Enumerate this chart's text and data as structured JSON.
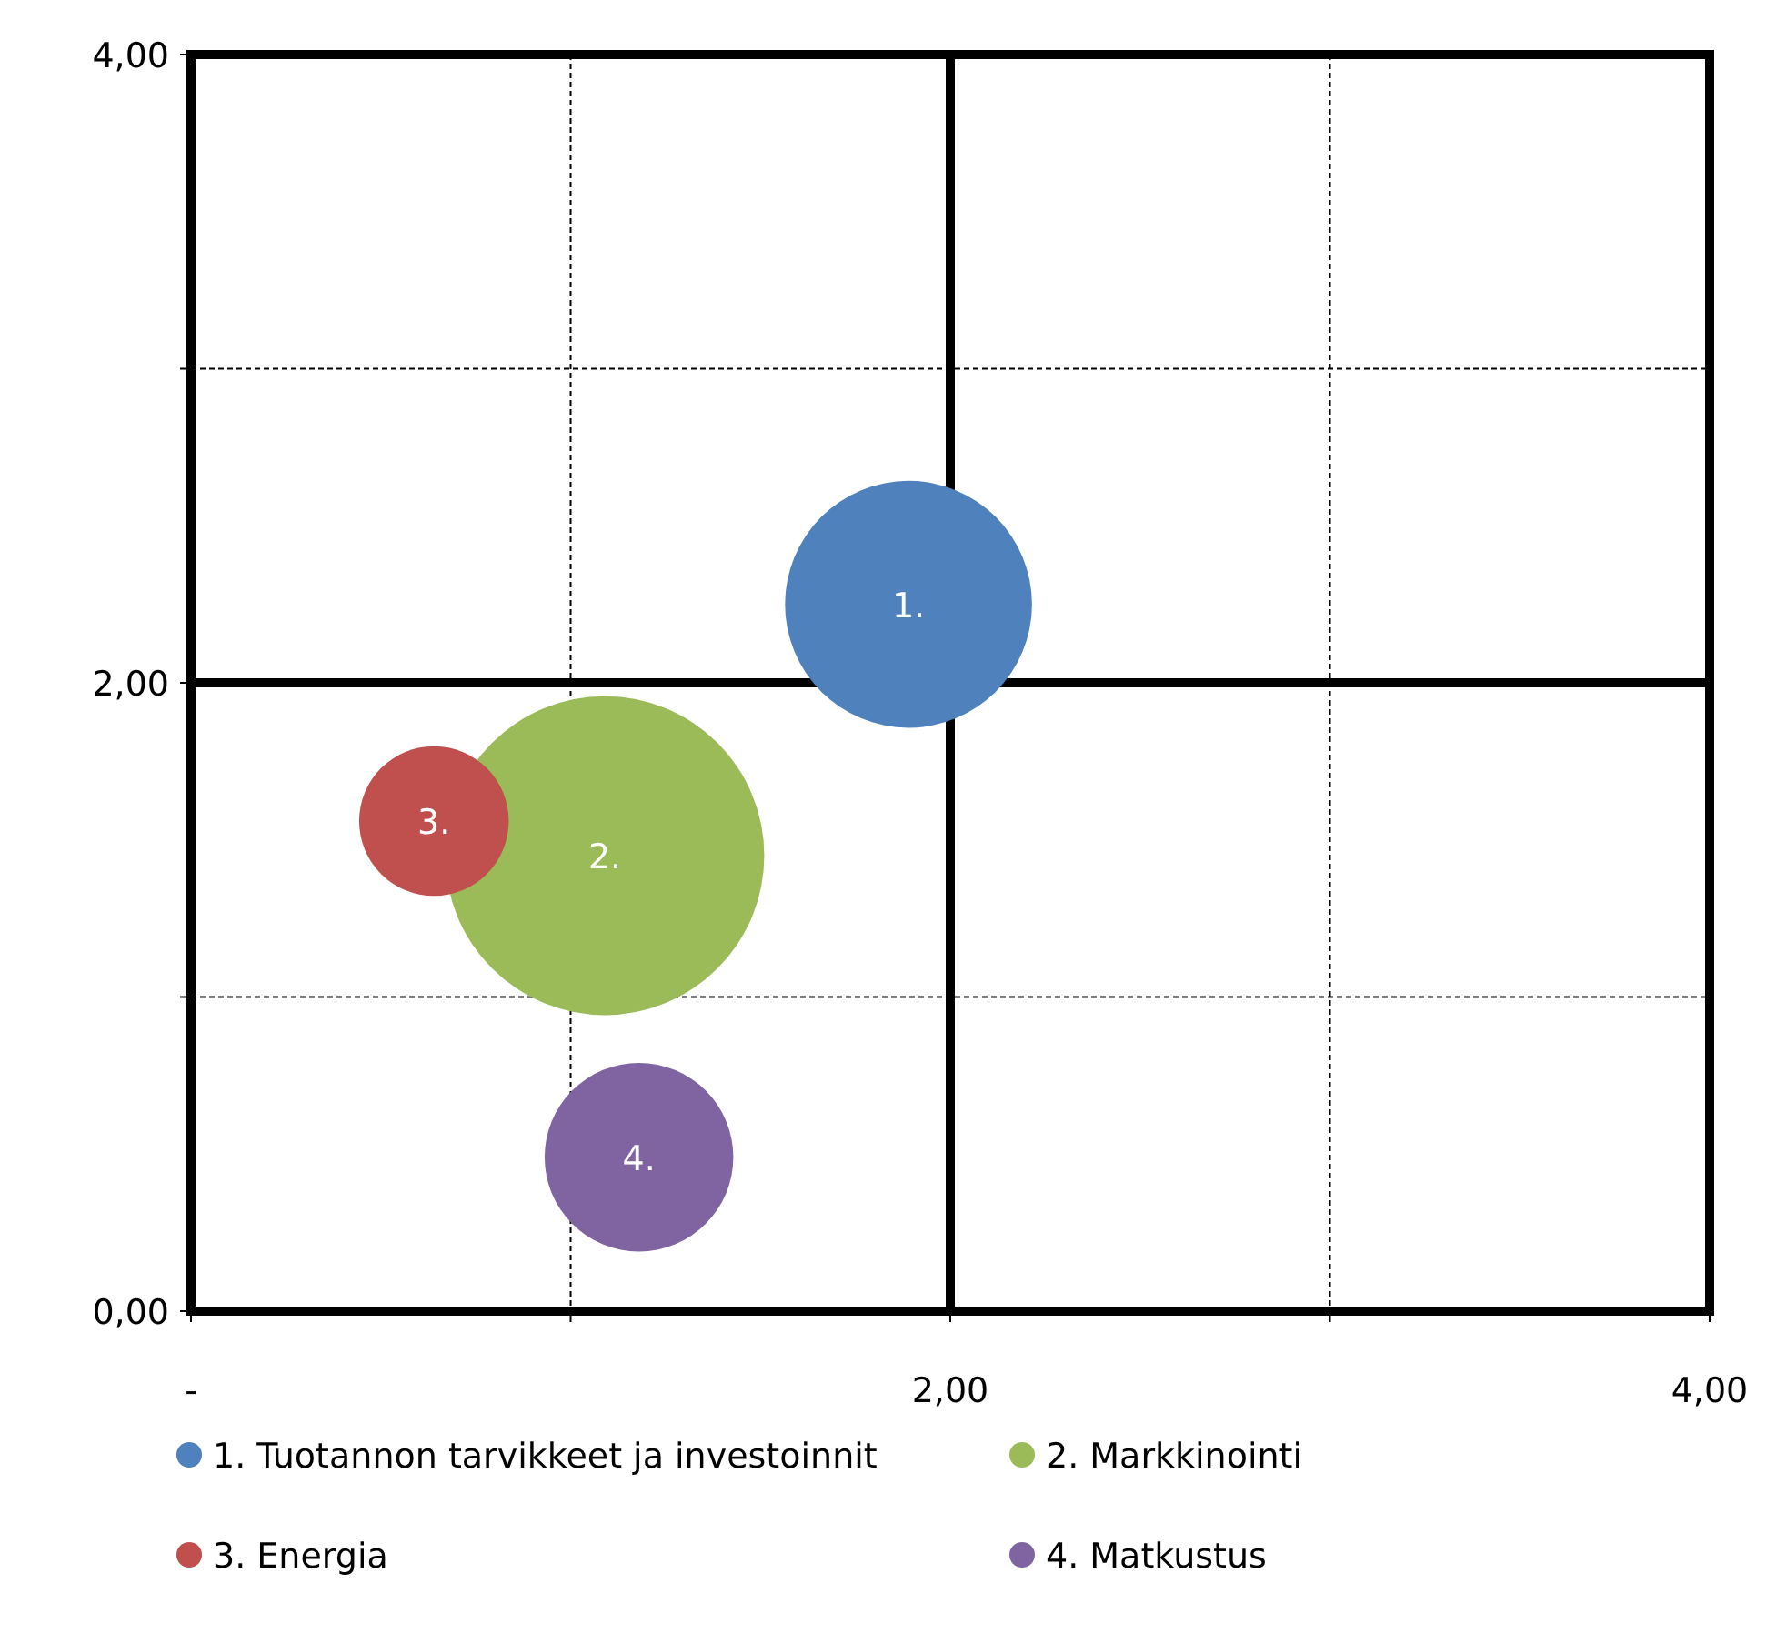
{
  "chart_data": {
    "type": "bubble",
    "series": [
      {
        "name": "1. Tuotannon tarvikkeet ja investoinnit",
        "color": "#4f81bd",
        "x": [
          1.89
        ],
        "values": [
          2.25
        ],
        "sizes": [
          0.6
        ]
      },
      {
        "name": "2. Markkinointi",
        "color": "#9bbb59",
        "x": [
          1.09
        ],
        "values": [
          1.45
        ],
        "sizes": [
          1
        ]
      },
      {
        "name": "3. Energia",
        "color": "#c0504d",
        "x": [
          0.64
        ],
        "values": [
          1.56
        ],
        "sizes": [
          0.22
        ]
      },
      {
        "name": "4. Matkustus",
        "color": "#8064a2",
        "x": [
          1.18
        ],
        "values": [
          0.49
        ],
        "sizes": [
          0.35
        ]
      }
    ],
    "annotations": [
      {
        "text": "1.",
        "x": 1.89,
        "y": 2.25
      },
      {
        "text": "2.",
        "x": 1.09,
        "y": 1.45
      },
      {
        "text": "3.",
        "x": 0.64,
        "y": 1.56
      },
      {
        "text": "4.",
        "x": 1.18,
        "y": 0.49
      }
    ],
    "xlim": [
      0,
      4
    ],
    "ylim": [
      0,
      4
    ],
    "xticks": [
      {
        "value": 0,
        "label": "-"
      },
      {
        "value": 1,
        "label": null
      },
      {
        "value": 2,
        "label": "2,00"
      },
      {
        "value": 3,
        "label": null
      },
      {
        "value": 4,
        "label": "4,00"
      }
    ],
    "yticks": [
      {
        "value": 0,
        "label": "0,00"
      },
      {
        "value": 1,
        "label": null
      },
      {
        "value": 2,
        "label": "2,00"
      },
      {
        "value": 3,
        "label": null
      },
      {
        "value": 4,
        "label": "4,00"
      }
    ],
    "grid": true,
    "legend": "bottom",
    "marker": "circle"
  }
}
